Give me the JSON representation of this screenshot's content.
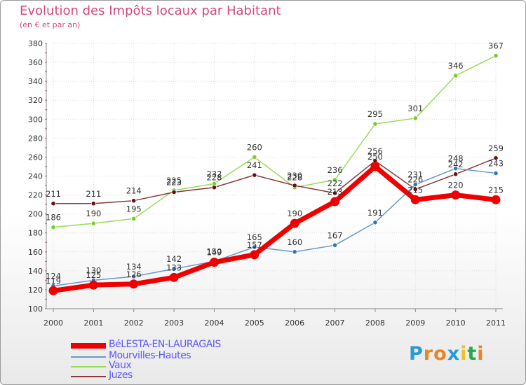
{
  "header": {
    "title": "Evolution des Impôts locaux par Habitant",
    "subtitle": "(en € et par an)"
  },
  "logo": {
    "text": "Proxiti"
  },
  "chart_data": {
    "type": "line",
    "title": "Evolution des Impôts locaux par Habitant",
    "subtitle": "(en € et par an)",
    "xlabel": "",
    "ylabel": "",
    "x": [
      "2000",
      "2001",
      "2002",
      "2003",
      "2004",
      "2005",
      "2006",
      "2007",
      "2008",
      "2009",
      "2010",
      "2011"
    ],
    "ylim": [
      100,
      380
    ],
    "yticks": [
      100,
      120,
      140,
      160,
      180,
      200,
      220,
      240,
      260,
      280,
      300,
      320,
      340,
      360,
      380
    ],
    "grid": true,
    "legend_position": "bottom-left",
    "series": [
      {
        "name": "Vaux",
        "color": "#99dd55",
        "dot": "#77cc33",
        "values": [
          186,
          190,
          195,
          225,
          232,
          260,
          228,
          236,
          295,
          301,
          346,
          367
        ]
      },
      {
        "name": "Juzes",
        "color": "#8a3a3a",
        "dot": "#661111",
        "values": [
          211,
          211,
          214,
          223,
          228,
          241,
          230,
          222,
          256,
          226,
          242,
          259
        ]
      },
      {
        "name": "Mourvilles-Hautes",
        "color": "#6699cc",
        "dot": "#3377bb",
        "values": [
          124,
          130,
          134,
          142,
          150,
          165,
          160,
          167,
          191,
          231,
          248,
          243
        ]
      },
      {
        "name": "BéLESTA-EN-LAURAGAIS",
        "color": "#ee0000",
        "dot": "#ee0000",
        "values": [
          119,
          125,
          126,
          133,
          149,
          157,
          190,
          213,
          250,
          215,
          220,
          215
        ]
      }
    ],
    "legend_order": [
      "BéLESTA-EN-LAURAGAIS",
      "Mourvilles-Hautes",
      "Vaux",
      "Juzes"
    ]
  }
}
